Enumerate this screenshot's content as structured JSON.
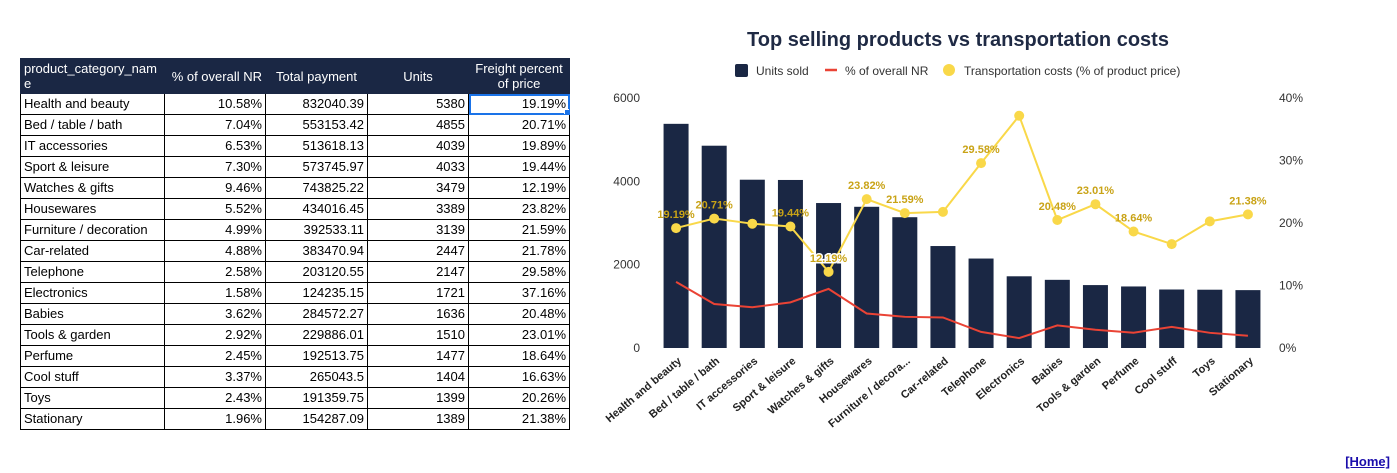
{
  "table": {
    "headers": [
      "product_category_name",
      "% of overall NR",
      "Total payment",
      "Units",
      "Freight percent of price"
    ],
    "rows": [
      [
        "Health and beauty",
        "10.58%",
        "832040.39",
        "5380",
        "19.19%"
      ],
      [
        "Bed / table / bath",
        "7.04%",
        "553153.42",
        "4855",
        "20.71%"
      ],
      [
        "IT accessories",
        "6.53%",
        "513618.13",
        "4039",
        "19.89%"
      ],
      [
        "Sport & leisure",
        "7.30%",
        "573745.97",
        "4033",
        "19.44%"
      ],
      [
        "Watches & gifts",
        "9.46%",
        "743825.22",
        "3479",
        "12.19%"
      ],
      [
        "Housewares",
        "5.52%",
        "434016.45",
        "3389",
        "23.82%"
      ],
      [
        "Furniture / decoration",
        "4.99%",
        "392533.11",
        "3139",
        "21.59%"
      ],
      [
        "Car-related",
        "4.88%",
        "383470.94",
        "2447",
        "21.78%"
      ],
      [
        "Telephone",
        "2.58%",
        "203120.55",
        "2147",
        "29.58%"
      ],
      [
        "Electronics",
        "1.58%",
        "124235.15",
        "1721",
        "37.16%"
      ],
      [
        "Babies",
        "3.62%",
        "284572.27",
        "1636",
        "20.48%"
      ],
      [
        "Tools & garden",
        "2.92%",
        "229886.01",
        "1510",
        "23.01%"
      ],
      [
        "Perfume",
        "2.45%",
        "192513.75",
        "1477",
        "18.64%"
      ],
      [
        "Cool stuff",
        "3.37%",
        "265043.5",
        "1404",
        "16.63%"
      ],
      [
        "Toys",
        "2.43%",
        "191359.75",
        "1399",
        "20.26%"
      ],
      [
        "Stationary",
        "1.96%",
        "154287.09",
        "1389",
        "21.38%"
      ]
    ]
  },
  "chart_data": {
    "type": "bar",
    "title": "Top selling products vs transportation costs",
    "categories": [
      "Health and beauty",
      "Bed / table / bath",
      "IT accessories",
      "Sport & leisure",
      "Watches & gifts",
      "Housewares",
      "Furniture / decora...",
      "Car-related",
      "Telephone",
      "Electronics",
      "Babies",
      "Tools & garden",
      "Perfume",
      "Cool stuff",
      "Toys",
      "Stationary"
    ],
    "series": [
      {
        "name": "Units sold",
        "type": "bar",
        "axis": "left",
        "color": "#1a2744",
        "values": [
          5380,
          4855,
          4039,
          4033,
          3479,
          3389,
          3139,
          2447,
          2147,
          1721,
          1636,
          1510,
          1477,
          1404,
          1399,
          1389
        ]
      },
      {
        "name": "% of overall NR",
        "type": "line",
        "axis": "right",
        "color": "#ea4335",
        "values": [
          10.58,
          7.04,
          6.53,
          7.3,
          9.46,
          5.52,
          4.99,
          4.88,
          2.58,
          1.58,
          3.62,
          2.92,
          2.45,
          3.37,
          2.43,
          1.96
        ]
      },
      {
        "name": "Transportation costs (% of product price)",
        "type": "line",
        "axis": "right",
        "color": "#f9d849",
        "values": [
          19.19,
          20.71,
          19.89,
          19.44,
          12.19,
          23.82,
          21.59,
          21.78,
          29.58,
          37.16,
          20.48,
          23.01,
          18.64,
          16.63,
          20.26,
          21.38
        ],
        "data_labels": [
          "19.19%",
          "20.71%",
          "",
          "19.44%",
          "12.19%",
          "23.82%",
          "21.59%",
          "",
          "29.58%",
          "",
          "20.48%",
          "23.01%",
          "18.64%",
          "",
          "",
          "21.38%"
        ]
      }
    ],
    "ylim_left": [
      0,
      6000
    ],
    "yticks_left": [
      "0",
      "2000",
      "4000",
      "6000"
    ],
    "ylim_right": [
      0,
      40
    ],
    "yticks_right": [
      "0%",
      "10%",
      "20%",
      "30%",
      "40%"
    ],
    "legend_position": "top",
    "grid": false
  },
  "footer": {
    "home_label": "[Home]"
  }
}
